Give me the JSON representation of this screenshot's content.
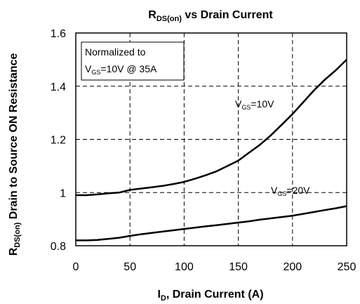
{
  "chart_data": {
    "type": "line",
    "title": {
      "main": "R",
      "sub": "DS(on)",
      "rest": " vs Drain Current"
    },
    "xlabel": {
      "main": "I",
      "sub": "D",
      "rest": ", Drain Current (A)"
    },
    "ylabel": {
      "main": "R",
      "sub": "DS(on)",
      "rest": " Drain to Source ON Resistance"
    },
    "xlim": [
      0,
      250
    ],
    "ylim": [
      0.8,
      1.6
    ],
    "x_ticks": [
      0,
      50,
      100,
      150,
      200,
      250
    ],
    "y_ticks": [
      0.8,
      1,
      1.2,
      1.4,
      1.6
    ],
    "x_tick_labels": [
      "0",
      "50",
      "100",
      "150",
      "200",
      "250"
    ],
    "y_tick_labels": [
      "0.8",
      "1",
      "1.2",
      "1.4",
      "1.6"
    ],
    "grid": true,
    "annotation": {
      "line1": "Normalized to",
      "line2": {
        "pre": "V",
        "sub": "GS",
        "post": "=10V @ 35A"
      }
    },
    "series": [
      {
        "name": {
          "pre": "V",
          "sub": "GS",
          "post": "=10V"
        },
        "x": [
          0,
          10,
          20,
          30,
          40,
          50,
          60,
          70,
          80,
          90,
          100,
          110,
          120,
          130,
          140,
          150,
          160,
          170,
          180,
          190,
          200,
          210,
          220,
          230,
          240,
          250
        ],
        "y": [
          0.99,
          0.99,
          0.993,
          0.997,
          1.0,
          1.01,
          1.015,
          1.02,
          1.025,
          1.032,
          1.04,
          1.052,
          1.065,
          1.08,
          1.1,
          1.12,
          1.15,
          1.18,
          1.215,
          1.255,
          1.295,
          1.34,
          1.385,
          1.425,
          1.46,
          1.5
        ]
      },
      {
        "name": {
          "pre": "V",
          "sub": "GS",
          "post": "=20V"
        },
        "x": [
          0,
          10,
          20,
          30,
          40,
          50,
          60,
          70,
          80,
          90,
          100,
          110,
          120,
          130,
          140,
          150,
          160,
          170,
          180,
          190,
          200,
          210,
          220,
          230,
          240,
          250
        ],
        "y": [
          0.82,
          0.82,
          0.822,
          0.826,
          0.83,
          0.837,
          0.843,
          0.848,
          0.853,
          0.858,
          0.863,
          0.868,
          0.873,
          0.877,
          0.882,
          0.887,
          0.892,
          0.898,
          0.903,
          0.908,
          0.913,
          0.92,
          0.927,
          0.934,
          0.941,
          0.949
        ]
      }
    ]
  }
}
